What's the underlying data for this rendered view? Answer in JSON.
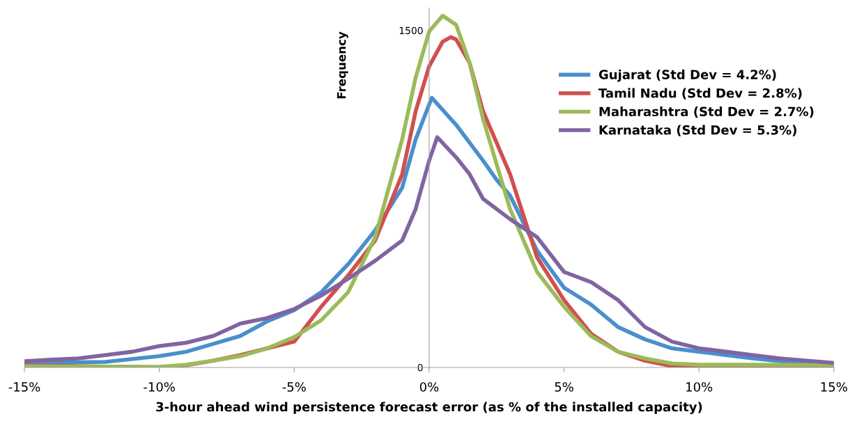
{
  "chart_data": {
    "type": "line",
    "xlabel": "3-hour ahead wind persistence forecast error (as % of the installed capacity)",
    "ylabel": "Frequency",
    "xlim": [
      -15,
      15
    ],
    "xticks": [
      {
        "value": -15,
        "label": "-15%"
      },
      {
        "value": -10,
        "label": "-10%"
      },
      {
        "value": -5,
        "label": "-5%"
      },
      {
        "value": 0,
        "label": "0%"
      },
      {
        "value": 5,
        "label": "5%"
      },
      {
        "value": 10,
        "label": "10%"
      },
      {
        "value": 15,
        "label": "15%"
      }
    ],
    "ylim": [
      0,
      1600
    ],
    "yticks": [
      0,
      1500
    ],
    "grid": false,
    "legend": "top right",
    "marker": "none",
    "line_style": "solid",
    "series": [
      {
        "name": "Gujarat (Std Dev = 4.2%)",
        "color": "#4a8fcc",
        "x": [
          -15,
          -12,
          -10,
          -9,
          -8,
          -7,
          -6,
          -5,
          -4,
          -3,
          -2,
          -1,
          -0.5,
          0,
          0.1,
          1,
          2,
          2.5,
          3,
          4,
          5,
          6,
          7,
          8,
          9,
          10,
          11,
          12,
          13,
          14,
          15
        ],
        "values": [
          20,
          25,
          50,
          70,
          105,
          140,
          205,
          255,
          335,
          460,
          610,
          800,
          1015,
          1170,
          1200,
          1080,
          920,
          835,
          765,
          520,
          355,
          280,
          180,
          125,
          85,
          70,
          55,
          40,
          28,
          18,
          12
        ]
      },
      {
        "name": "Tamil Nadu (Std Dev = 2.8%)",
        "color": "#d0504d",
        "x": [
          -15,
          -10,
          -9,
          -8,
          -7,
          -6,
          -5,
          -4,
          -3,
          -2,
          -1,
          -0.5,
          0,
          0.5,
          0.8,
          1,
          1.5,
          2,
          3,
          4,
          5,
          6,
          7,
          8,
          9,
          10,
          15
        ],
        "values": [
          10,
          0,
          10,
          30,
          55,
          85,
          115,
          270,
          410,
          565,
          860,
          1140,
          1340,
          1450,
          1470,
          1460,
          1355,
          1140,
          860,
          490,
          300,
          150,
          70,
          30,
          6,
          0,
          0
        ]
      },
      {
        "name": "Maharashtra (Std Dev = 2.7%)",
        "color": "#9bbb59",
        "x": [
          -15,
          -10,
          -9,
          -8,
          -7,
          -6,
          -5,
          -4,
          -3,
          -2,
          -1,
          -0.5,
          0,
          0.5,
          1,
          1.5,
          2,
          3,
          4,
          5,
          6,
          7,
          8,
          9,
          10,
          12,
          15
        ],
        "values": [
          5,
          3,
          12,
          30,
          50,
          85,
          135,
          210,
          335,
          580,
          1015,
          1290,
          1495,
          1565,
          1525,
          1355,
          1105,
          705,
          425,
          270,
          140,
          70,
          40,
          18,
          12,
          12,
          10
        ]
      },
      {
        "name": "Karnataka (Std Dev = 5.3%)",
        "color": "#8064a2",
        "x": [
          -15,
          -14,
          -13,
          -12,
          -11,
          -10,
          -9,
          -8,
          -7,
          -6,
          -5,
          -4,
          -3,
          -2,
          -1,
          -0.5,
          0,
          0.3,
          1,
          1.5,
          2,
          3,
          4,
          5,
          6,
          7,
          8,
          9,
          10,
          11,
          12,
          13,
          14,
          15
        ],
        "values": [
          28,
          35,
          40,
          55,
          70,
          95,
          110,
          140,
          195,
          220,
          260,
          320,
          395,
          475,
          565,
          705,
          920,
          1025,
          935,
          860,
          750,
          660,
          580,
          425,
          380,
          300,
          180,
          115,
          85,
          70,
          55,
          40,
          30,
          20
        ]
      }
    ]
  }
}
